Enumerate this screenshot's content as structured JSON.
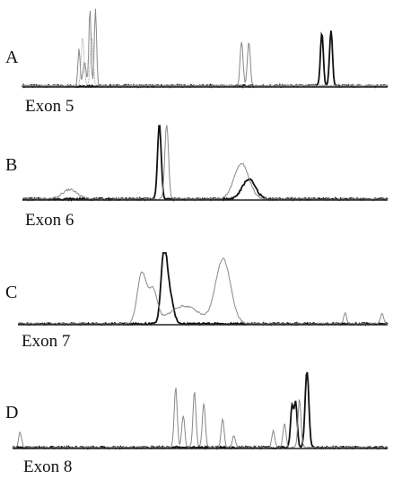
{
  "figure": {
    "panel_count": 4
  },
  "chart_data": [
    {
      "type": "line",
      "panel": "A",
      "xlabel": "Exon 5",
      "grid": false,
      "ylim": [
        0,
        1
      ],
      "series": [
        {
          "style": "dark",
          "color": "#111111",
          "peaks": [
            {
              "x": 0.82,
              "h": 0.65,
              "w": 0.004
            },
            {
              "x": 0.845,
              "h": 0.68,
              "w": 0.004
            }
          ]
        },
        {
          "style": "gray",
          "color": "#888888",
          "peaks": [
            {
              "x": 0.155,
              "h": 0.45,
              "w": 0.003
            },
            {
              "x": 0.185,
              "h": 0.95,
              "w": 0.003
            },
            {
              "x": 0.2,
              "h": 0.95,
              "w": 0.003
            },
            {
              "x": 0.17,
              "h": 0.3,
              "w": 0.004
            },
            {
              "x": 0.6,
              "h": 0.55,
              "w": 0.004
            },
            {
              "x": 0.62,
              "h": 0.55,
              "w": 0.004
            }
          ]
        },
        {
          "style": "light",
          "color": "#aaaaaa",
          "peaks": [
            {
              "x": 0.165,
              "h": 0.6,
              "w": 0.004
            },
            {
              "x": 0.19,
              "h": 0.6,
              "w": 0.004
            }
          ]
        }
      ]
    },
    {
      "type": "line",
      "panel": "B",
      "xlabel": "Exon 6",
      "grid": false,
      "ylim": [
        0,
        1
      ],
      "series": [
        {
          "style": "dark",
          "color": "#111111",
          "peaks": [
            {
              "x": 0.375,
              "h": 0.95,
              "w": 0.005
            },
            {
              "x": 0.62,
              "h": 0.25,
              "w": 0.018
            }
          ]
        },
        {
          "style": "gray",
          "color": "#888888",
          "peaks": [
            {
              "x": 0.395,
              "h": 0.95,
              "w": 0.005
            },
            {
              "x": 0.6,
              "h": 0.45,
              "w": 0.02
            },
            {
              "x": 0.13,
              "h": 0.12,
              "w": 0.02
            }
          ]
        }
      ]
    },
    {
      "type": "line",
      "panel": "C",
      "xlabel": "Exon 7",
      "grid": false,
      "ylim": [
        0,
        1
      ],
      "series": [
        {
          "style": "dark",
          "color": "#111111",
          "peaks": [
            {
              "x": 0.395,
              "h": 0.95,
              "w": 0.008
            },
            {
              "x": 0.41,
              "h": 0.4,
              "w": 0.01
            }
          ]
        },
        {
          "style": "gray",
          "color": "#888888",
          "peaks": [
            {
              "x": 0.335,
              "h": 0.7,
              "w": 0.012
            },
            {
              "x": 0.365,
              "h": 0.45,
              "w": 0.012
            },
            {
              "x": 0.45,
              "h": 0.25,
              "w": 0.04
            },
            {
              "x": 0.555,
              "h": 0.9,
              "w": 0.02
            },
            {
              "x": 0.885,
              "h": 0.15,
              "w": 0.004
            },
            {
              "x": 0.985,
              "h": 0.15,
              "w": 0.004
            }
          ]
        }
      ]
    },
    {
      "type": "line",
      "panel": "D",
      "xlabel": "Exon 8",
      "grid": false,
      "ylim": [
        0,
        1
      ],
      "series": [
        {
          "style": "dark",
          "color": "#111111",
          "peaks": [
            {
              "x": 0.785,
              "h": 0.95,
              "w": 0.005
            },
            {
              "x": 0.745,
              "h": 0.5,
              "w": 0.004
            },
            {
              "x": 0.755,
              "h": 0.55,
              "w": 0.004
            }
          ]
        },
        {
          "style": "gray",
          "color": "#888888",
          "peaks": [
            {
              "x": 0.02,
              "h": 0.2,
              "w": 0.004
            },
            {
              "x": 0.435,
              "h": 0.75,
              "w": 0.004
            },
            {
              "x": 0.455,
              "h": 0.4,
              "w": 0.004
            },
            {
              "x": 0.485,
              "h": 0.7,
              "w": 0.004
            },
            {
              "x": 0.51,
              "h": 0.55,
              "w": 0.004
            },
            {
              "x": 0.56,
              "h": 0.35,
              "w": 0.004
            },
            {
              "x": 0.59,
              "h": 0.15,
              "w": 0.004
            },
            {
              "x": 0.695,
              "h": 0.2,
              "w": 0.004
            },
            {
              "x": 0.725,
              "h": 0.3,
              "w": 0.004
            },
            {
              "x": 0.765,
              "h": 0.6,
              "w": 0.004
            }
          ]
        }
      ]
    }
  ]
}
